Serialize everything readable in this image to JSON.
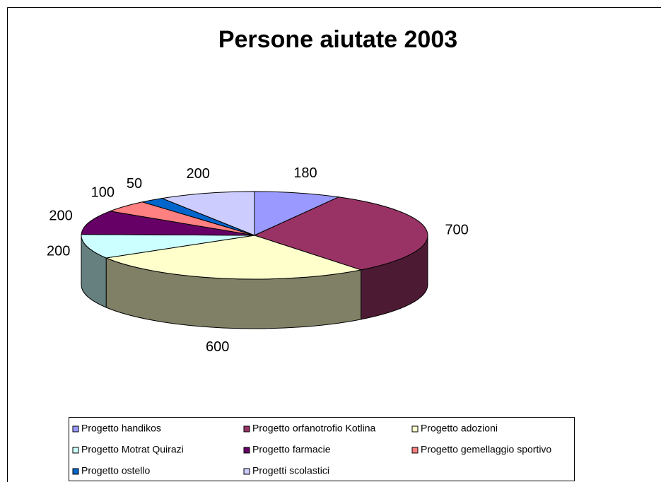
{
  "chart_data": {
    "type": "pie3d",
    "title": "Persone aiutate 2003",
    "categories": [
      "Progetto handikos",
      "Progetto orfanotrofio Kotlina",
      "Progetto adozioni",
      "Progetto Motrat Quirazi",
      "Progetto farmacie",
      "Progetto gemellaggio sportivo",
      "Progetto ostello",
      "Progetti scolastici"
    ],
    "values": [
      180,
      700,
      600,
      200,
      200,
      100,
      50,
      200
    ],
    "colors": [
      "#9999ff",
      "#993366",
      "#ffffcc",
      "#ccffff",
      "#660066",
      "#ff8080",
      "#0066cc",
      "#ccccff"
    ],
    "legend": "bottom"
  }
}
